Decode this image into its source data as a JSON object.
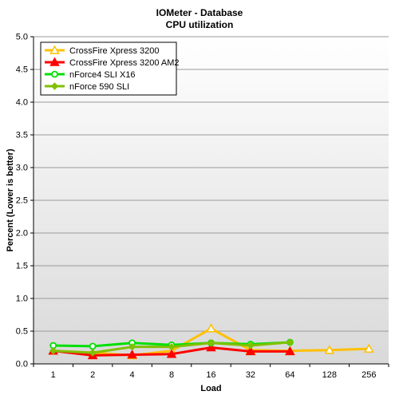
{
  "chart_data": {
    "type": "line",
    "title": "IOMeter - Database",
    "subtitle": "CPU utilization",
    "xlabel": "Load",
    "ylabel": "Percent (Lower is better)",
    "x": [
      "1",
      "2",
      "4",
      "8",
      "16",
      "32",
      "64",
      "128",
      "256"
    ],
    "ylim": [
      0,
      5.0
    ],
    "yticks": [
      "0.0",
      "0.5",
      "1.0",
      "1.5",
      "2.0",
      "2.5",
      "3.0",
      "3.5",
      "4.0",
      "4.5",
      "5.0"
    ],
    "grid": "horizontal",
    "legend_position": "top-left",
    "series": [
      {
        "name": "CrossFire Xpress 3200",
        "color": "#FFC000",
        "marker": "triangle-open",
        "values": [
          0.2,
          0.17,
          0.13,
          0.2,
          0.54,
          0.21,
          0.2,
          0.21,
          0.23
        ]
      },
      {
        "name": "CrossFire Xpress 3200 AM2",
        "color": "#FF0000",
        "marker": "triangle",
        "values": [
          0.2,
          0.13,
          0.14,
          0.15,
          0.25,
          0.19,
          0.19,
          null,
          null
        ]
      },
      {
        "name": "nForce4 SLI X16",
        "color": "#00E000",
        "marker": "circle-open",
        "values": [
          0.28,
          0.27,
          0.32,
          0.29,
          0.32,
          0.3,
          0.33,
          null,
          null
        ]
      },
      {
        "name": "nForce 590 SLI",
        "color": "#80C000",
        "marker": "diamond",
        "values": [
          0.2,
          0.17,
          0.26,
          0.26,
          0.32,
          0.28,
          0.33,
          null,
          null
        ]
      }
    ]
  }
}
